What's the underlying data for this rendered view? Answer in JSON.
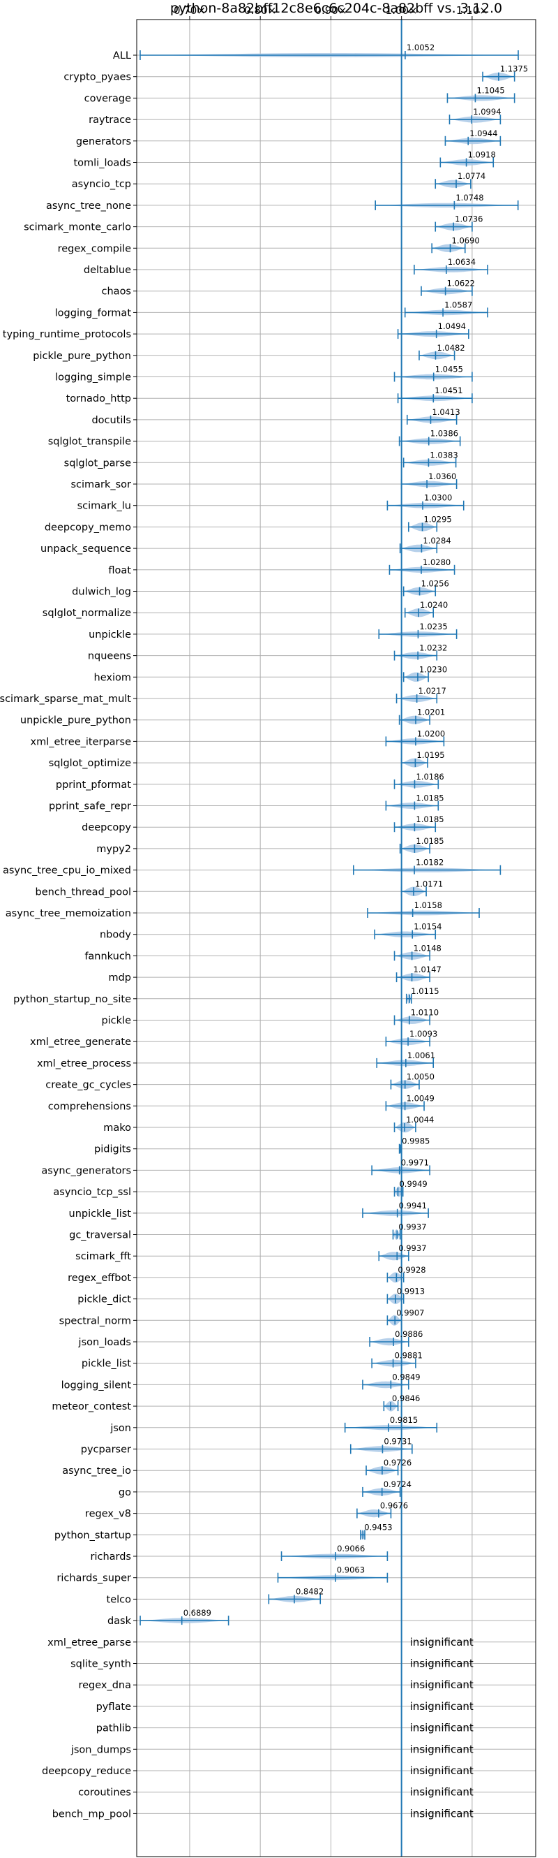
{
  "chart_data": {
    "type": "violin",
    "title": "python-8a82bff12c8e6c6c204c-8a82bff vs. 3.12.0",
    "xlabel": "",
    "ylabel": "",
    "x_ticks": [
      "0.70×",
      "0.80×",
      "0.90×",
      "1.00×",
      "1.10×"
    ],
    "x_tick_values": [
      0.7,
      0.8,
      0.9,
      1.0,
      1.1
    ],
    "xlim": [
      0.625,
      1.19
    ],
    "reference_line": 1.0,
    "grid": true,
    "insignificant_label": "insignificant",
    "colors": {
      "violin": "#a9c8e6",
      "line": "#1f77b4",
      "grid": "#b0b0b0"
    },
    "benchmarks": [
      {
        "name": "ALL",
        "mean": 1.0052,
        "label": "1.0052",
        "min": 0.6299,
        "max": 1.1653
      },
      {
        "name": "crypto_pyaes",
        "mean": 1.1375,
        "label": "1.1375",
        "min": 1.115,
        "max": 1.16
      },
      {
        "name": "coverage",
        "mean": 1.1045,
        "label": "1.1045",
        "min": 1.065,
        "max": 1.16
      },
      {
        "name": "raytrace",
        "mean": 1.0994,
        "label": "1.0994",
        "min": 1.068,
        "max": 1.14
      },
      {
        "name": "generators",
        "mean": 1.0944,
        "label": "1.0944",
        "min": 1.062,
        "max": 1.14
      },
      {
        "name": "tomli_loads",
        "mean": 1.0918,
        "label": "1.0918",
        "min": 1.055,
        "max": 1.13
      },
      {
        "name": "asyncio_tcp",
        "mean": 1.0774,
        "label": "1.0774",
        "min": 1.048,
        "max": 1.098
      },
      {
        "name": "async_tree_none",
        "mean": 1.0748,
        "label": "1.0748",
        "min": 0.963,
        "max": 1.165
      },
      {
        "name": "scimark_monte_carlo",
        "mean": 1.0736,
        "label": "1.0736",
        "min": 1.048,
        "max": 1.1
      },
      {
        "name": "regex_compile",
        "mean": 1.069,
        "label": "1.0690",
        "min": 1.043,
        "max": 1.09
      },
      {
        "name": "deltablue",
        "mean": 1.0634,
        "label": "1.0634",
        "min": 1.018,
        "max": 1.122
      },
      {
        "name": "chaos",
        "mean": 1.0622,
        "label": "1.0622",
        "min": 1.028,
        "max": 1.1
      },
      {
        "name": "logging_format",
        "mean": 1.0587,
        "label": "1.0587",
        "min": 1.005,
        "max": 1.122
      },
      {
        "name": "typing_runtime_protocols",
        "mean": 1.0494,
        "label": "1.0494",
        "min": 0.995,
        "max": 1.095
      },
      {
        "name": "pickle_pure_python",
        "mean": 1.0482,
        "label": "1.0482",
        "min": 1.025,
        "max": 1.075
      },
      {
        "name": "logging_simple",
        "mean": 1.0455,
        "label": "1.0455",
        "min": 0.99,
        "max": 1.1
      },
      {
        "name": "tornado_http",
        "mean": 1.0451,
        "label": "1.0451",
        "min": 0.995,
        "max": 1.1
      },
      {
        "name": "docutils",
        "mean": 1.0413,
        "label": "1.0413",
        "min": 1.008,
        "max": 1.078
      },
      {
        "name": "sqlglot_transpile",
        "mean": 1.0386,
        "label": "1.0386",
        "min": 0.997,
        "max": 1.083
      },
      {
        "name": "sqlglot_parse",
        "mean": 1.0383,
        "label": "1.0383",
        "min": 1.003,
        "max": 1.077
      },
      {
        "name": "scimark_sor",
        "mean": 1.036,
        "label": "1.0360",
        "min": 1.0,
        "max": 1.078
      },
      {
        "name": "scimark_lu",
        "mean": 1.03,
        "label": "1.0300",
        "min": 0.98,
        "max": 1.088
      },
      {
        "name": "deepcopy_memo",
        "mean": 1.0295,
        "label": "1.0295",
        "min": 1.01,
        "max": 1.05
      },
      {
        "name": "unpack_sequence",
        "mean": 1.0284,
        "label": "1.0284",
        "min": 0.998,
        "max": 1.05
      },
      {
        "name": "float",
        "mean": 1.028,
        "label": "1.0280",
        "min": 0.983,
        "max": 1.075
      },
      {
        "name": "dulwich_log",
        "mean": 1.0256,
        "label": "1.0256",
        "min": 1.003,
        "max": 1.048
      },
      {
        "name": "sqlglot_normalize",
        "mean": 1.024,
        "label": "1.0240",
        "min": 1.005,
        "max": 1.045
      },
      {
        "name": "unpickle",
        "mean": 1.0235,
        "label": "1.0235",
        "min": 0.968,
        "max": 1.078
      },
      {
        "name": "nqueens",
        "mean": 1.0232,
        "label": "1.0232",
        "min": 0.99,
        "max": 1.05
      },
      {
        "name": "hexiom",
        "mean": 1.023,
        "label": "1.0230",
        "min": 1.003,
        "max": 1.038
      },
      {
        "name": "scimark_sparse_mat_mult",
        "mean": 1.0217,
        "label": "1.0217",
        "min": 0.993,
        "max": 1.05
      },
      {
        "name": "unpickle_pure_python",
        "mean": 1.0201,
        "label": "1.0201",
        "min": 0.997,
        "max": 1.04
      },
      {
        "name": "xml_etree_iterparse",
        "mean": 1.02,
        "label": "1.0200",
        "min": 0.978,
        "max": 1.06
      },
      {
        "name": "sqlglot_optimize",
        "mean": 1.0195,
        "label": "1.0195",
        "min": 1.0,
        "max": 1.037
      },
      {
        "name": "pprint_pformat",
        "mean": 1.0186,
        "label": "1.0186",
        "min": 0.99,
        "max": 1.052
      },
      {
        "name": "pprint_safe_repr",
        "mean": 1.0185,
        "label": "1.0185",
        "min": 0.978,
        "max": 1.052
      },
      {
        "name": "deepcopy",
        "mean": 1.0185,
        "label": "1.0185",
        "min": 0.99,
        "max": 1.048
      },
      {
        "name": "mypy2",
        "mean": 1.0185,
        "label": "1.0185",
        "min": 0.998,
        "max": 1.04
      },
      {
        "name": "async_tree_cpu_io_mixed",
        "mean": 1.0182,
        "label": "1.0182",
        "min": 0.932,
        "max": 1.14
      },
      {
        "name": "bench_thread_pool",
        "mean": 1.0171,
        "label": "1.0171",
        "min": 1.0,
        "max": 1.035
      },
      {
        "name": "async_tree_memoization",
        "mean": 1.0158,
        "label": "1.0158",
        "min": 0.952,
        "max": 1.11
      },
      {
        "name": "nbody",
        "mean": 1.0154,
        "label": "1.0154",
        "min": 0.962,
        "max": 1.048
      },
      {
        "name": "fannkuch",
        "mean": 1.0148,
        "label": "1.0148",
        "min": 0.99,
        "max": 1.04
      },
      {
        "name": "mdp",
        "mean": 1.0147,
        "label": "1.0147",
        "min": 0.993,
        "max": 1.04
      },
      {
        "name": "python_startup_no_site",
        "mean": 1.0115,
        "label": "1.0115",
        "min": 1.007,
        "max": 1.014
      },
      {
        "name": "pickle",
        "mean": 1.011,
        "label": "1.0110",
        "min": 0.99,
        "max": 1.04
      },
      {
        "name": "xml_etree_generate",
        "mean": 1.0093,
        "label": "1.0093",
        "min": 0.978,
        "max": 1.04
      },
      {
        "name": "xml_etree_process",
        "mean": 1.0061,
        "label": "1.0061",
        "min": 0.965,
        "max": 1.045
      },
      {
        "name": "create_gc_cycles",
        "mean": 1.005,
        "label": "1.0050",
        "min": 0.985,
        "max": 1.025
      },
      {
        "name": "comprehensions",
        "mean": 1.0049,
        "label": "1.0049",
        "min": 0.978,
        "max": 1.032
      },
      {
        "name": "mako",
        "mean": 1.0044,
        "label": "1.0044",
        "min": 0.99,
        "max": 1.02
      },
      {
        "name": "pidigits",
        "mean": 0.9985,
        "label": "0.9985",
        "min": 0.997,
        "max": 1.0
      },
      {
        "name": "async_generators",
        "mean": 0.9971,
        "label": "0.9971",
        "min": 0.958,
        "max": 1.04
      },
      {
        "name": "asyncio_tcp_ssl",
        "mean": 0.9949,
        "label": "0.9949",
        "min": 0.99,
        "max": 1.002
      },
      {
        "name": "unpickle_list",
        "mean": 0.9941,
        "label": "0.9941",
        "min": 0.945,
        "max": 1.038
      },
      {
        "name": "gc_traversal",
        "mean": 0.9937,
        "label": "0.9937",
        "min": 0.988,
        "max": 0.998
      },
      {
        "name": "scimark_fft",
        "mean": 0.9937,
        "label": "0.9937",
        "min": 0.968,
        "max": 1.01
      },
      {
        "name": "regex_effbot",
        "mean": 0.9928,
        "label": "0.9928",
        "min": 0.98,
        "max": 1.003
      },
      {
        "name": "pickle_dict",
        "mean": 0.9913,
        "label": "0.9913",
        "min": 0.98,
        "max": 1.003
      },
      {
        "name": "spectral_norm",
        "mean": 0.9907,
        "label": "0.9907",
        "min": 0.98,
        "max": 1.0
      },
      {
        "name": "json_loads",
        "mean": 0.9886,
        "label": "0.9886",
        "min": 0.955,
        "max": 1.01
      },
      {
        "name": "pickle_list",
        "mean": 0.9881,
        "label": "0.9881",
        "min": 0.958,
        "max": 1.02
      },
      {
        "name": "logging_silent",
        "mean": 0.9849,
        "label": "0.9849",
        "min": 0.945,
        "max": 1.01
      },
      {
        "name": "meteor_contest",
        "mean": 0.9846,
        "label": "0.9846",
        "min": 0.975,
        "max": 0.995
      },
      {
        "name": "json",
        "mean": 0.9815,
        "label": "0.9815",
        "min": 0.92,
        "max": 1.05
      },
      {
        "name": "pycparser",
        "mean": 0.9731,
        "label": "0.9731",
        "min": 0.928,
        "max": 1.015
      },
      {
        "name": "async_tree_io",
        "mean": 0.9726,
        "label": "0.9726",
        "min": 0.95,
        "max": 0.995
      },
      {
        "name": "go",
        "mean": 0.9724,
        "label": "0.9724",
        "min": 0.945,
        "max": 0.998
      },
      {
        "name": "regex_v8",
        "mean": 0.9676,
        "label": "0.9676",
        "min": 0.937,
        "max": 0.985
      },
      {
        "name": "python_startup",
        "mean": 0.9453,
        "label": "0.9453",
        "min": 0.942,
        "max": 0.948
      },
      {
        "name": "richards",
        "mean": 0.9066,
        "label": "0.9066",
        "min": 0.83,
        "max": 0.98
      },
      {
        "name": "richards_super",
        "mean": 0.9063,
        "label": "0.9063",
        "min": 0.825,
        "max": 0.98
      },
      {
        "name": "telco",
        "mean": 0.8482,
        "label": "0.8482",
        "min": 0.812,
        "max": 0.885
      },
      {
        "name": "dask",
        "mean": 0.6889,
        "label": "0.6889",
        "min": 0.63,
        "max": 0.755
      },
      {
        "name": "xml_etree_parse",
        "insignificant": true
      },
      {
        "name": "sqlite_synth",
        "insignificant": true
      },
      {
        "name": "regex_dna",
        "insignificant": true
      },
      {
        "name": "pyflate",
        "insignificant": true
      },
      {
        "name": "pathlib",
        "insignificant": true
      },
      {
        "name": "json_dumps",
        "insignificant": true
      },
      {
        "name": "deepcopy_reduce",
        "insignificant": true
      },
      {
        "name": "coroutines",
        "insignificant": true
      },
      {
        "name": "bench_mp_pool",
        "insignificant": true
      }
    ]
  }
}
